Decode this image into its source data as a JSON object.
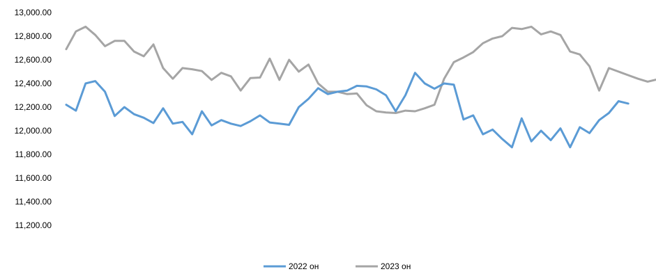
{
  "chart_data": {
    "type": "line",
    "title": "",
    "xlabel": "",
    "ylabel": "",
    "ylim": [
      11200,
      13000
    ],
    "y_ticks": [
      "13,000.00",
      "12,800.00",
      "12,600.00",
      "12,400.00",
      "12,200.00",
      "12,000.00",
      "11,800.00",
      "11,600.00",
      "11,400.00",
      "11,200.00"
    ],
    "y_tick_values": [
      13000,
      12800,
      12600,
      12400,
      12200,
      12000,
      11800,
      11600,
      11400,
      11200
    ],
    "grid": false,
    "legend_position": "bottom",
    "colors": {
      "series_2022": "#5B9BD5",
      "series_2023": "#A5A5A5"
    },
    "series": [
      {
        "name": "2022 он",
        "values": [
          12220,
          12170,
          12400,
          12420,
          12330,
          12125,
          12200,
          12140,
          12110,
          12065,
          12190,
          12060,
          12075,
          11970,
          12165,
          12045,
          12090,
          12060,
          12040,
          12080,
          12130,
          12070,
          12060,
          12050,
          12200,
          12270,
          12360,
          12310,
          12330,
          12340,
          12380,
          12375,
          12350,
          12300,
          12165,
          12300,
          12490,
          12400,
          12355,
          12400,
          12390,
          12095,
          12130,
          11970,
          12010,
          11930,
          11860,
          12105,
          11910,
          12000,
          11920,
          12020,
          11860,
          12030,
          11980,
          12090,
          12150,
          12250,
          12230
        ]
      },
      {
        "name": "2023 он",
        "values": [
          12690,
          12840,
          12880,
          12810,
          12715,
          12760,
          12760,
          12670,
          12630,
          12730,
          12530,
          12440,
          12530,
          12520,
          12505,
          12430,
          12490,
          12460,
          12340,
          12445,
          12450,
          12610,
          12430,
          12600,
          12500,
          12560,
          12400,
          12330,
          12330,
          12310,
          12315,
          12215,
          12165,
          12155,
          12150,
          12170,
          12165,
          12190,
          12220,
          12440,
          12580,
          12620,
          12665,
          12740,
          12780,
          12800,
          12870,
          12860,
          12880,
          12815,
          12840,
          12810,
          12670,
          12645,
          12545,
          12340,
          12530,
          12500,
          12470,
          12440,
          12415,
          12435
        ]
      }
    ]
  }
}
